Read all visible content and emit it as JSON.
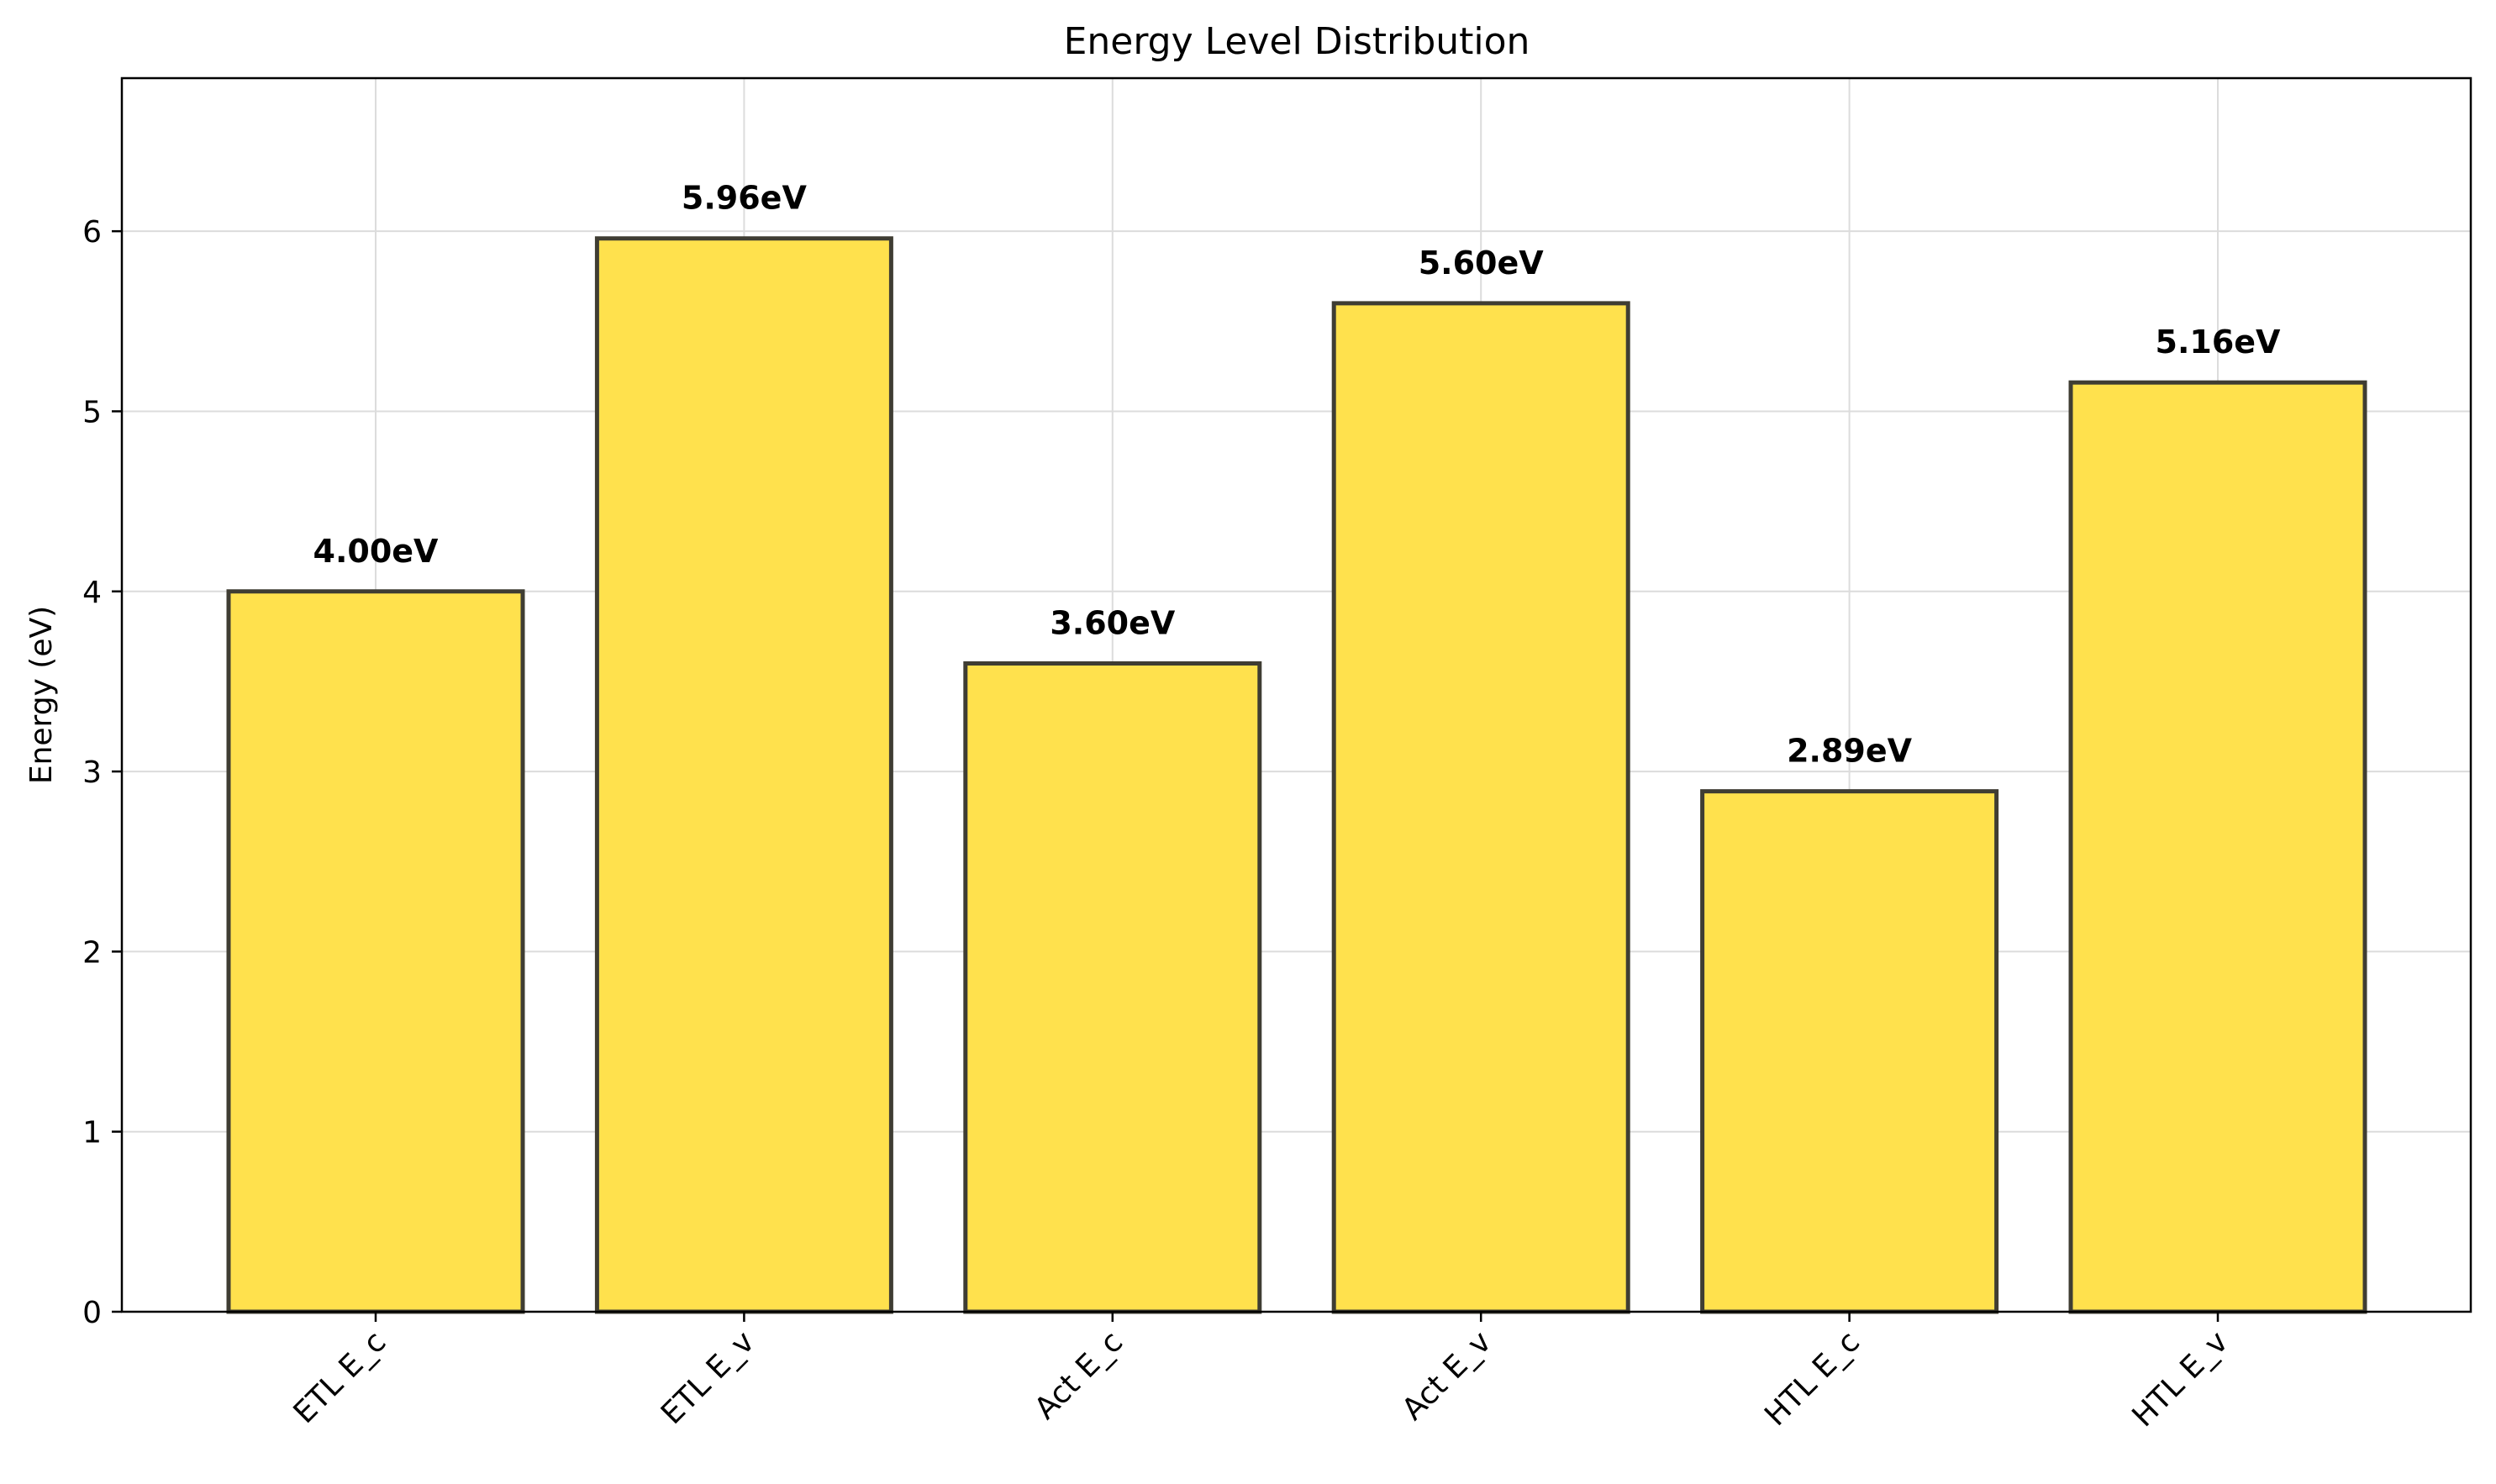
{
  "chart_data": {
    "type": "bar",
    "title": "Energy Level Distribution",
    "xlabel": "",
    "ylabel": "Energy (eV)",
    "categories": [
      "ETL E_c",
      "ETL E_v",
      "Act E_c",
      "Act E_v",
      "HTL E_c",
      "HTL E_v"
    ],
    "values": [
      4.0,
      5.96,
      3.6,
      5.6,
      2.89,
      5.16
    ],
    "data_labels": [
      "4.00eV",
      "5.96eV",
      "3.60eV",
      "5.60eV",
      "2.89eV",
      "5.16eV"
    ],
    "ylim": [
      0,
      6.85
    ],
    "yticks": [
      0,
      1,
      2,
      3,
      4,
      5,
      6
    ],
    "grid": true,
    "bar_color": "#FFE14D",
    "edge_color": "#3f3d33"
  }
}
